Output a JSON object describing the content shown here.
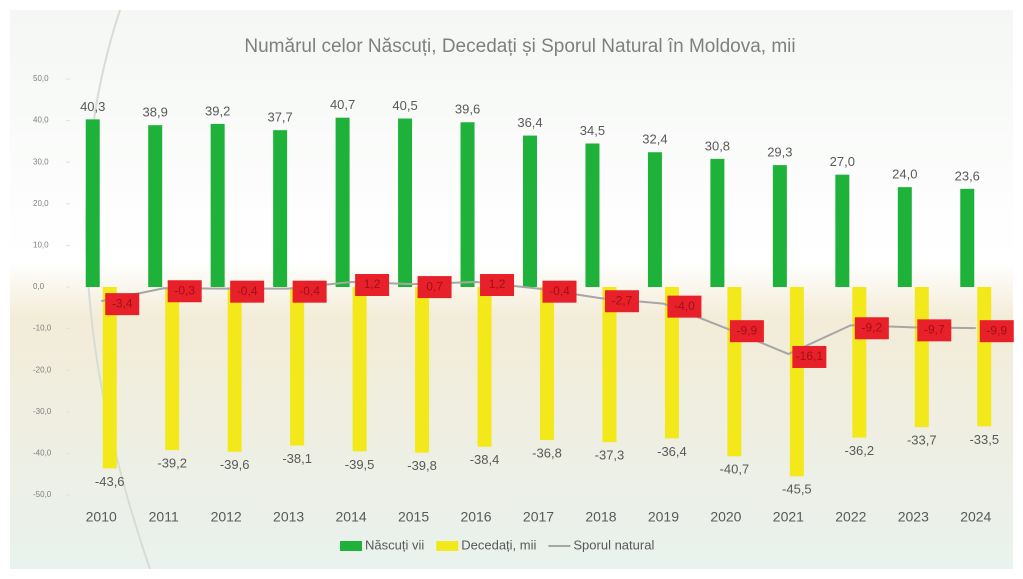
{
  "chart_data": {
    "type": "bar",
    "title": "Numărul celor Născuți, Decedați și Sporul Natural în Moldova, mii",
    "categories": [
      "2010",
      "2011",
      "2012",
      "2013",
      "2014",
      "2015",
      "2016",
      "2017",
      "2018",
      "2019",
      "2020",
      "2021",
      "2022",
      "2023",
      "2024"
    ],
    "series": [
      {
        "name": "Născuți vii",
        "type": "bar",
        "color": "#1fb23a",
        "values": [
          40.3,
          38.9,
          39.2,
          37.7,
          40.7,
          40.5,
          39.6,
          36.4,
          34.5,
          32.4,
          30.8,
          29.3,
          27.0,
          24.0,
          23.6
        ],
        "value_labels": [
          "40,3",
          "38,9",
          "39,2",
          "37,7",
          "40,7",
          "40,5",
          "39,6",
          "36,4",
          "34,5",
          "32,4",
          "30,8",
          "29,3",
          "27,0",
          "24,0",
          "23,6"
        ]
      },
      {
        "name": "Decedați, mii",
        "type": "bar",
        "color": "#f2e81a",
        "values": [
          -43.6,
          -39.2,
          -39.6,
          -38.1,
          -39.5,
          -39.8,
          -38.4,
          -36.8,
          -37.3,
          -36.4,
          -40.7,
          -45.5,
          -36.2,
          -33.7,
          -33.5
        ],
        "value_labels": [
          "-43,6",
          "-39,2",
          "-39,6",
          "-38,1",
          "-39,5",
          "-39,8",
          "-38,4",
          "-36,8",
          "-37,3",
          "-36,4",
          "-40,7",
          "-45,5",
          "-36,2",
          "-33,7",
          "-33,5"
        ]
      },
      {
        "name": "Sporul natural",
        "type": "line",
        "color": "#a6a6a6",
        "label_color": "#e8202a",
        "values": [
          -3.4,
          -0.3,
          -0.4,
          -0.4,
          1.2,
          0.7,
          1.2,
          -0.4,
          -2.7,
          -4.0,
          -9.9,
          -16.1,
          -9.2,
          -9.7,
          -9.9
        ],
        "value_labels": [
          "-3,4",
          "-0,3",
          "-0,4",
          "-0,4",
          "1,2",
          "0,7",
          "1,2",
          "-0,4",
          "-2,7",
          "-4,0",
          "-9,9",
          "-16,1",
          "-9,2",
          "-9,7",
          "-9,9"
        ]
      }
    ],
    "ylim": [
      -50,
      50
    ],
    "yticks": [
      {
        "value": -50,
        "label": "-50,0"
      },
      {
        "value": -40,
        "label": "-40,0"
      },
      {
        "value": -30,
        "label": "-30,0"
      },
      {
        "value": -20,
        "label": "-20,0"
      },
      {
        "value": -10,
        "label": "-10,0"
      },
      {
        "value": 0,
        "label": "0,0"
      },
      {
        "value": 10,
        "label": "10,0"
      },
      {
        "value": 20,
        "label": "20,0"
      },
      {
        "value": 30,
        "label": "30,0"
      },
      {
        "value": 40,
        "label": "40,0"
      },
      {
        "value": 50,
        "label": "50,0"
      }
    ],
    "legend": "bottom"
  }
}
